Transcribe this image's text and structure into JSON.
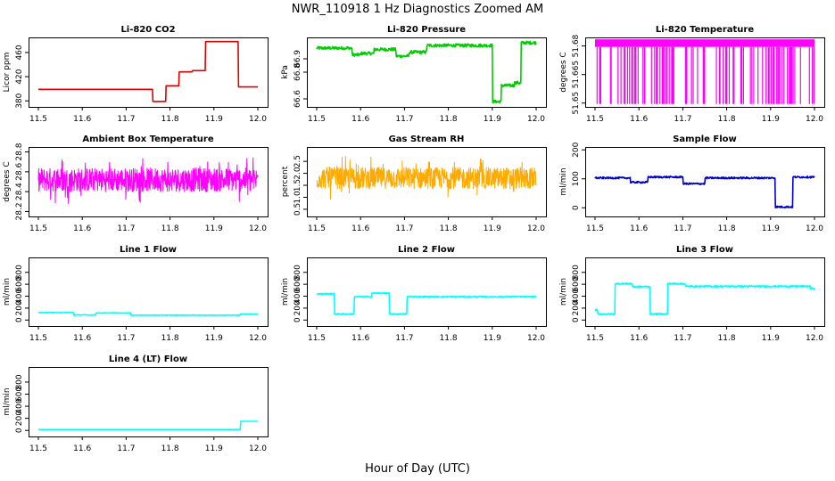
{
  "figure": {
    "title": "NWR_110918  1 Hz Diagnostics Zoomed AM",
    "xlabel": "Hour of Day (UTC)"
  },
  "chart_data": [
    {
      "id": "co2",
      "type": "line",
      "title": "Li-820 CO2",
      "ylabel": "Licor ppm",
      "xlim": [
        11.5,
        12.0
      ],
      "ylim": [
        370,
        485
      ],
      "xticks": [
        11.5,
        11.6,
        11.7,
        11.8,
        11.9,
        12.0
      ],
      "yticks": [
        380,
        420,
        460
      ],
      "ytick_labels": [
        "380",
        "420",
        "460"
      ],
      "color": "#e00000",
      "noise": 0,
      "shape": "line",
      "segments": [
        [
          11.5,
          11.76,
          399
        ],
        [
          11.76,
          11.79,
          379
        ],
        [
          11.79,
          11.82,
          405
        ],
        [
          11.82,
          11.85,
          428
        ],
        [
          11.85,
          11.88,
          430
        ],
        [
          11.88,
          11.955,
          478
        ],
        [
          11.955,
          12.0,
          403
        ]
      ]
    },
    {
      "id": "pressure",
      "type": "line",
      "title": "Li-820 Pressure",
      "ylabel": "kPa",
      "xlim": [
        11.5,
        12.0
      ],
      "ylim": [
        66.54,
        67.06
      ],
      "xticks": [
        11.5,
        11.6,
        11.7,
        11.8,
        11.9,
        12.0
      ],
      "yticks": [
        66.6,
        66.8,
        66.9
      ],
      "ytick_labels": [
        "66.6",
        "66.8",
        "66.9"
      ],
      "color": "#00cc00",
      "noise": 0.012,
      "shape": "line",
      "segments": [
        [
          11.5,
          11.58,
          66.98
        ],
        [
          11.58,
          11.6,
          66.93
        ],
        [
          11.6,
          11.63,
          66.94
        ],
        [
          11.63,
          11.66,
          66.97
        ],
        [
          11.66,
          11.68,
          66.97
        ],
        [
          11.68,
          11.71,
          66.92
        ],
        [
          11.71,
          11.75,
          66.95
        ],
        [
          11.75,
          11.9,
          67.0
        ],
        [
          11.9,
          11.92,
          66.58
        ],
        [
          11.92,
          11.95,
          66.7
        ],
        [
          11.95,
          11.965,
          66.72
        ],
        [
          11.965,
          12.0,
          67.02
        ]
      ]
    },
    {
      "id": "li820temp",
      "type": "line",
      "title": "Li-820 Temperature",
      "ylabel": "degrees C",
      "xlim": [
        11.5,
        12.0
      ],
      "ylim": [
        51.648,
        51.6845
      ],
      "xticks": [
        11.5,
        11.6,
        11.7,
        11.8,
        11.9,
        12.0
      ],
      "yticks": [
        51.65,
        51.665,
        51.68
      ],
      "ytick_labels": [
        "51.65",
        "51.665",
        "51.68"
      ],
      "color": "#ff00ff",
      "noise": 0,
      "shape": "dense",
      "high": 51.6835,
      "mid": 51.6795,
      "low": 51.6495
    },
    {
      "id": "ambient",
      "type": "line",
      "title": "Ambient Box Temperature",
      "ylabel": "degrees C",
      "xlim": [
        11.5,
        12.0
      ],
      "ylim": [
        28.15,
        28.85
      ],
      "xticks": [
        11.5,
        11.6,
        11.7,
        11.8,
        11.9,
        12.0
      ],
      "yticks": [
        28.2,
        28.4,
        28.6,
        28.8
      ],
      "ytick_labels": [
        "28.2",
        "28.4",
        "28.6",
        "28.8"
      ],
      "color": "#ff00ff",
      "noise": 0.12,
      "shape": "noisy",
      "segments": [
        [
          11.5,
          12.0,
          28.52
        ]
      ]
    },
    {
      "id": "rh",
      "type": "line",
      "title": "Gas Stream RH",
      "ylabel": "percent",
      "xlim": [
        11.5,
        12.0
      ],
      "ylim": [
        0.2,
        3.1
      ],
      "xticks": [
        11.5,
        11.6,
        11.7,
        11.8,
        11.9,
        12.0
      ],
      "yticks": [
        0.5,
        1.0,
        1.5,
        2.0,
        2.5
      ],
      "ytick_labels": [
        "0.5",
        "1.0",
        "1.5",
        "2.0",
        "2.5"
      ],
      "color": "#ffaa00",
      "noise": 0.45,
      "shape": "noisy",
      "segments": [
        [
          11.5,
          12.0,
          1.8
        ]
      ]
    },
    {
      "id": "sample",
      "type": "line",
      "title": "Sample Flow",
      "ylabel": "ml/min",
      "xlim": [
        11.5,
        12.0
      ],
      "ylim": [
        -30,
        210
      ],
      "xticks": [
        11.5,
        11.6,
        11.7,
        11.8,
        11.9,
        12.0
      ],
      "yticks": [
        0,
        100,
        200
      ],
      "ytick_labels": [
        "0",
        "100",
        "200"
      ],
      "color": "#0000cc",
      "noise": 3,
      "shape": "line",
      "segments": [
        [
          11.5,
          11.58,
          103
        ],
        [
          11.58,
          11.62,
          88
        ],
        [
          11.62,
          11.7,
          106
        ],
        [
          11.7,
          11.75,
          83
        ],
        [
          11.75,
          11.91,
          103
        ],
        [
          11.91,
          11.95,
          3
        ],
        [
          11.95,
          12.0,
          106
        ]
      ]
    },
    {
      "id": "line1",
      "type": "line",
      "title": "Line 1 Flow",
      "ylabel": "ml/min",
      "xlim": [
        11.5,
        12.0
      ],
      "ylim": [
        -100,
        1050
      ],
      "xticks": [
        11.5,
        11.6,
        11.7,
        11.8,
        11.9,
        12.0
      ],
      "yticks": [
        0,
        200,
        400,
        600,
        800
      ],
      "ytick_labels": [
        "0",
        "200",
        "400",
        "600",
        "800"
      ],
      "color": "#00ffff",
      "noise": 5,
      "shape": "line",
      "segments": [
        [
          11.5,
          11.58,
          125
        ],
        [
          11.58,
          11.63,
          85
        ],
        [
          11.63,
          11.71,
          118
        ],
        [
          11.71,
          11.96,
          82
        ],
        [
          11.96,
          12.0,
          100
        ]
      ]
    },
    {
      "id": "line2",
      "type": "line",
      "title": "Line 2 Flow",
      "ylabel": "ml/min",
      "xlim": [
        11.5,
        12.0
      ],
      "ylim": [
        -100,
        1050
      ],
      "xticks": [
        11.5,
        11.6,
        11.7,
        11.8,
        11.9,
        12.0
      ],
      "yticks": [
        0,
        200,
        400,
        600,
        800
      ],
      "ytick_labels": [
        "0",
        "200",
        "400",
        "600",
        "800"
      ],
      "color": "#00ffff",
      "noise": 10,
      "shape": "line",
      "segments": [
        [
          11.5,
          11.54,
          440
        ],
        [
          11.54,
          11.585,
          100
        ],
        [
          11.585,
          11.625,
          390
        ],
        [
          11.625,
          11.665,
          450
        ],
        [
          11.665,
          11.705,
          100
        ],
        [
          11.705,
          12.0,
          390
        ]
      ]
    },
    {
      "id": "line3",
      "type": "line",
      "title": "Line 3 Flow",
      "ylabel": "ml/min",
      "xlim": [
        11.5,
        12.0
      ],
      "ylim": [
        -100,
        1050
      ],
      "xticks": [
        11.5,
        11.6,
        11.7,
        11.8,
        11.9,
        12.0
      ],
      "yticks": [
        0,
        200,
        400,
        600,
        800
      ],
      "ytick_labels": [
        "0",
        "200",
        "400",
        "600",
        "800"
      ],
      "color": "#00ffff",
      "noise": 12,
      "shape": "line",
      "segments": [
        [
          11.5,
          11.505,
          170
        ],
        [
          11.505,
          11.545,
          100
        ],
        [
          11.545,
          11.585,
          610
        ],
        [
          11.585,
          11.625,
          560
        ],
        [
          11.625,
          11.665,
          100
        ],
        [
          11.665,
          11.705,
          610
        ],
        [
          11.705,
          11.99,
          565
        ],
        [
          11.99,
          12.0,
          530
        ]
      ]
    },
    {
      "id": "line4",
      "type": "line",
      "title": "Line 4 (LT) Flow",
      "ylabel": "ml/min",
      "xlim": [
        11.5,
        12.0
      ],
      "ylim": [
        -100,
        1050
      ],
      "xticks": [
        11.5,
        11.6,
        11.7,
        11.8,
        11.9,
        12.0
      ],
      "yticks": [
        0,
        200,
        400,
        600,
        800
      ],
      "ytick_labels": [
        "0",
        "200",
        "400",
        "600",
        "800"
      ],
      "color": "#00ffff",
      "noise": 0,
      "shape": "line",
      "segments": [
        [
          11.5,
          11.96,
          15
        ],
        [
          11.96,
          12.0,
          150
        ]
      ]
    }
  ]
}
